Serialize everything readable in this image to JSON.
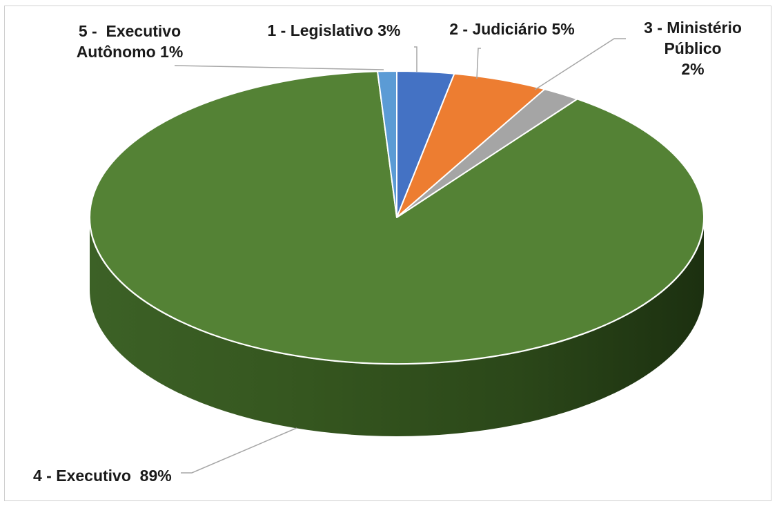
{
  "chart_data": {
    "type": "pie",
    "three_d": true,
    "title": "",
    "legend": "none",
    "slices": [
      {
        "label": "1 - Legislativo 3%",
        "name": "1 - Legislativo",
        "value": 3,
        "color": "#4472c4"
      },
      {
        "label": "2 - Judiciário 5%",
        "name": "2 - Judiciário",
        "value": 5,
        "color": "#ed7d31"
      },
      {
        "label": "3 - Ministério Público 2%",
        "name": "3 - Ministério Público",
        "value": 2,
        "color": "#a5a5a5"
      },
      {
        "label": "4 - Executivo 89%",
        "name": "4 - Executivo",
        "value": 89,
        "color": "#548235"
      },
      {
        "label": "5 - Executivo Autônomo 1%",
        "name": "5 - Executivo Autônomo",
        "value": 1,
        "color": "#5b9bd5"
      }
    ],
    "labels": {
      "legislativo": "1 - Legislativo 3%",
      "judiciario": "2 - Judiciário 5%",
      "ministerio_l1": "3 - Ministério",
      "ministerio_l2": "Público",
      "ministerio_l3": "2%",
      "executivo": "4 - Executivo  89%",
      "autonomo_l1": "5 -  Executivo",
      "autonomo_l2": "Autônomo 1%"
    }
  }
}
